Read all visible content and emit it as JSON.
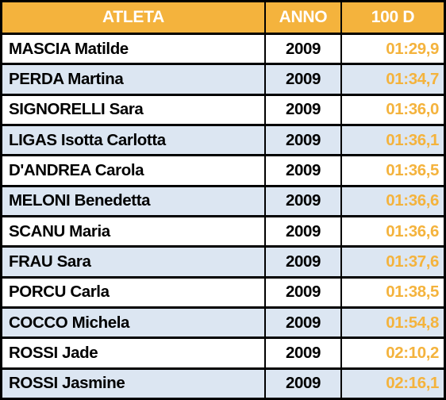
{
  "table": {
    "headers": {
      "athlete": "ATLETA",
      "year": "ANNO",
      "event": "100 D"
    },
    "rows": [
      {
        "athlete": "MASCIA Matilde",
        "year": "2009",
        "time": "01:29,9"
      },
      {
        "athlete": "PERDA Martina",
        "year": "2009",
        "time": "01:34,7"
      },
      {
        "athlete": "SIGNORELLI Sara",
        "year": "2009",
        "time": "01:36,0"
      },
      {
        "athlete": "LIGAS Isotta Carlotta",
        "year": "2009",
        "time": "01:36,1"
      },
      {
        "athlete": "D'ANDREA Carola",
        "year": "2009",
        "time": "01:36,5"
      },
      {
        "athlete": "MELONI Benedetta",
        "year": "2009",
        "time": "01:36,6"
      },
      {
        "athlete": "SCANU Maria",
        "year": "2009",
        "time": "01:36,6"
      },
      {
        "athlete": "FRAU Sara",
        "year": "2009",
        "time": "01:37,6"
      },
      {
        "athlete": "PORCU Carla",
        "year": "2009",
        "time": "01:38,5"
      },
      {
        "athlete": "COCCO Michela",
        "year": "2009",
        "time": "01:54,8"
      },
      {
        "athlete": "ROSSI Jade",
        "year": "2009",
        "time": "02:10,2"
      },
      {
        "athlete": "ROSSI Jasmine",
        "year": "2009",
        "time": "02:16,1"
      }
    ]
  },
  "colors": {
    "header_background": "#f4b33d",
    "header_text": "#ffffff",
    "time_text": "#f4b33d",
    "stripe_background": "#dce6f2",
    "row_background": "#ffffff",
    "border": "#000000"
  }
}
